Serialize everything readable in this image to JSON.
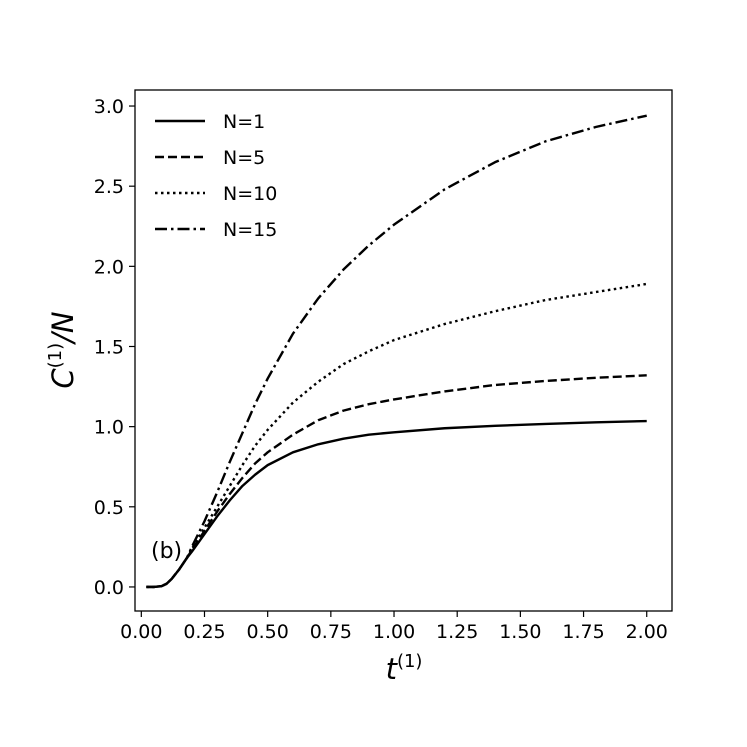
{
  "chart_data": {
    "type": "line",
    "xlabel": {
      "main": "t",
      "sup": "(1)"
    },
    "ylabel": {
      "main": "C",
      "sup": "(1)",
      "suffix": "/N"
    },
    "panel_label": "(b)",
    "xlim": [
      -0.025,
      2.1
    ],
    "ylim": [
      -0.15,
      3.1
    ],
    "xticks": [
      0.0,
      0.25,
      0.5,
      0.75,
      1.0,
      1.25,
      1.5,
      1.75,
      2.0
    ],
    "xtick_labels": [
      "0.00",
      "0.25",
      "0.50",
      "0.75",
      "1.00",
      "1.25",
      "1.50",
      "1.75",
      "2.00"
    ],
    "yticks": [
      0.0,
      0.5,
      1.0,
      1.5,
      2.0,
      2.5,
      3.0
    ],
    "ytick_labels": [
      "0.0",
      "0.5",
      "1.0",
      "1.5",
      "2.0",
      "2.5",
      "3.0"
    ],
    "grid": false,
    "legend_position": "top-left",
    "series": [
      {
        "name": "N=1",
        "style": "solid",
        "x": [
          0.02,
          0.05,
          0.08,
          0.1,
          0.12,
          0.15,
          0.18,
          0.2,
          0.25,
          0.3,
          0.35,
          0.4,
          0.45,
          0.5,
          0.6,
          0.7,
          0.8,
          0.9,
          1.0,
          1.2,
          1.4,
          1.6,
          1.8,
          2.0
        ],
        "y": [
          0.0,
          0.0,
          0.005,
          0.02,
          0.05,
          0.11,
          0.18,
          0.22,
          0.33,
          0.44,
          0.54,
          0.63,
          0.7,
          0.76,
          0.84,
          0.89,
          0.925,
          0.95,
          0.965,
          0.99,
          1.005,
          1.017,
          1.027,
          1.035
        ]
      },
      {
        "name": "N=5",
        "style": "dashed",
        "x": [
          0.02,
          0.05,
          0.08,
          0.1,
          0.12,
          0.15,
          0.18,
          0.2,
          0.25,
          0.3,
          0.35,
          0.4,
          0.45,
          0.5,
          0.6,
          0.7,
          0.8,
          0.9,
          1.0,
          1.2,
          1.4,
          1.6,
          1.8,
          2.0
        ],
        "y": [
          0.0,
          0.0,
          0.005,
          0.02,
          0.05,
          0.11,
          0.18,
          0.23,
          0.35,
          0.47,
          0.58,
          0.68,
          0.77,
          0.84,
          0.95,
          1.04,
          1.1,
          1.14,
          1.17,
          1.22,
          1.26,
          1.285,
          1.305,
          1.32
        ]
      },
      {
        "name": "N=10",
        "style": "dotted",
        "x": [
          0.02,
          0.05,
          0.08,
          0.1,
          0.12,
          0.15,
          0.18,
          0.2,
          0.25,
          0.3,
          0.35,
          0.4,
          0.45,
          0.5,
          0.6,
          0.7,
          0.8,
          0.9,
          1.0,
          1.2,
          1.4,
          1.6,
          1.8,
          2.0
        ],
        "y": [
          0.0,
          0.0,
          0.005,
          0.02,
          0.05,
          0.11,
          0.18,
          0.24,
          0.37,
          0.5,
          0.63,
          0.76,
          0.88,
          0.98,
          1.15,
          1.28,
          1.39,
          1.47,
          1.54,
          1.64,
          1.72,
          1.79,
          1.84,
          1.89
        ]
      },
      {
        "name": "N=15",
        "style": "dashdot",
        "x": [
          0.02,
          0.05,
          0.08,
          0.1,
          0.12,
          0.15,
          0.18,
          0.2,
          0.25,
          0.3,
          0.35,
          0.4,
          0.45,
          0.5,
          0.6,
          0.7,
          0.8,
          0.9,
          1.0,
          1.2,
          1.4,
          1.6,
          1.8,
          2.0
        ],
        "y": [
          0.0,
          0.0,
          0.005,
          0.02,
          0.05,
          0.11,
          0.18,
          0.25,
          0.41,
          0.59,
          0.78,
          0.96,
          1.14,
          1.3,
          1.58,
          1.8,
          1.98,
          2.13,
          2.26,
          2.48,
          2.65,
          2.78,
          2.87,
          2.94
        ]
      }
    ]
  }
}
